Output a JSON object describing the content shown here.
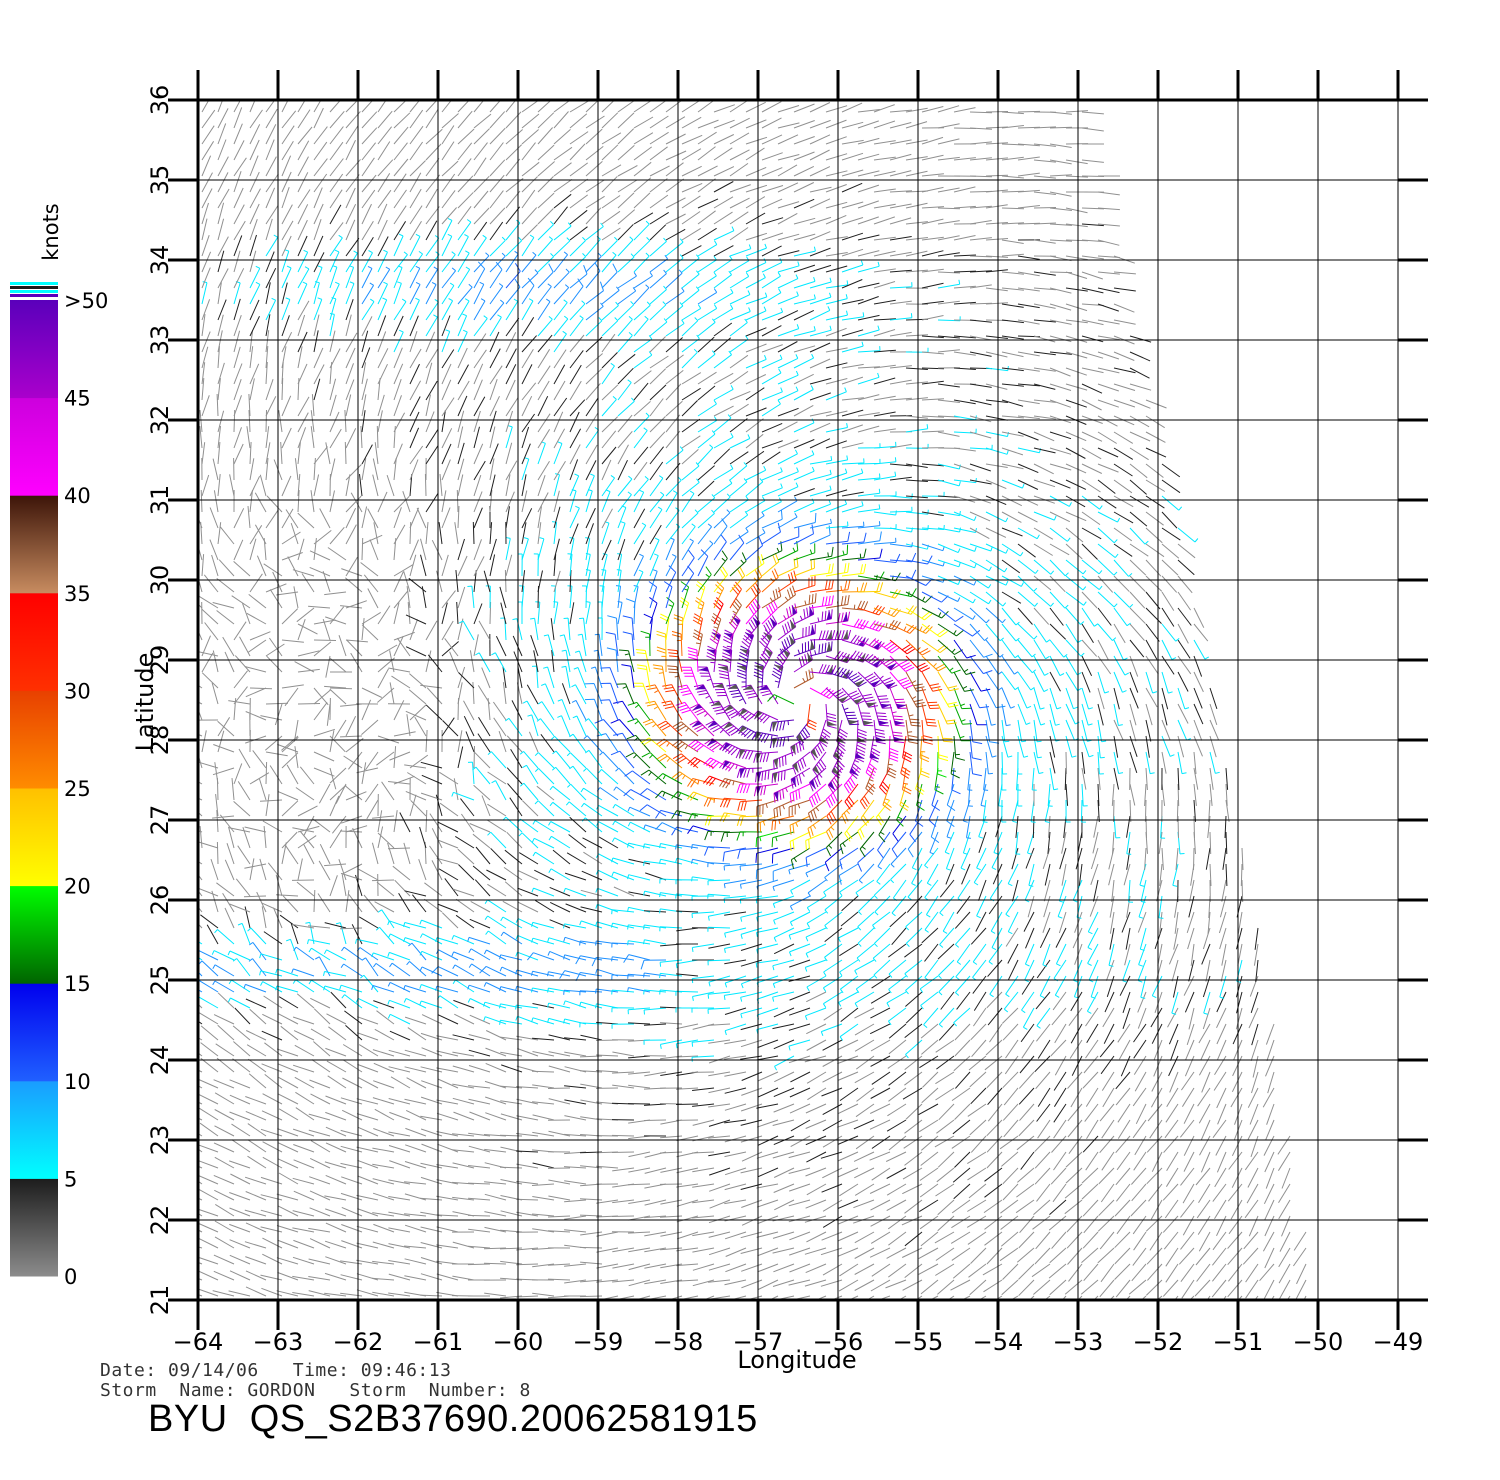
{
  "colorbar": {
    "unit_label": "knots",
    "tick_labels": [
      ">50",
      "45",
      "40",
      "35",
      "30",
      "25",
      "20",
      "15",
      "10",
      "5",
      "0"
    ],
    "bands": [
      {
        "range": "0-5",
        "colors": [
          "#8c8c8c",
          "#1c1c1c"
        ]
      },
      {
        "range": "5-10",
        "colors": [
          "#00ffff",
          "#1a9cff"
        ]
      },
      {
        "range": "10-15",
        "colors": [
          "#2060ff",
          "#0000ee"
        ]
      },
      {
        "range": "15-20",
        "colors": [
          "#006400",
          "#00ff00"
        ]
      },
      {
        "range": "20-25",
        "colors": [
          "#ffff00",
          "#ffc000"
        ]
      },
      {
        "range": "25-30",
        "colors": [
          "#ff8c00",
          "#e84000"
        ]
      },
      {
        "range": "30-35",
        "colors": [
          "#ff3000",
          "#ff0000"
        ]
      },
      {
        "range": "35-40",
        "colors": [
          "#c88c60",
          "#3c1408"
        ]
      },
      {
        "range": "40-45",
        "colors": [
          "#ff00ff",
          "#cc00dd"
        ]
      },
      {
        "range": "45-50",
        "colors": [
          "#aa00cc",
          "#5a00bb"
        ]
      }
    ]
  },
  "map": {
    "lon_range": [
      -64,
      -49
    ],
    "lat_range": [
      21,
      36
    ],
    "lon_ticks": [
      "−64",
      "−63",
      "−62",
      "−61",
      "−60",
      "−59",
      "−58",
      "−57",
      "−56",
      "−55",
      "−54",
      "−53",
      "−52",
      "−51",
      "−50",
      "−49"
    ],
    "lat_ticks": [
      "21",
      "22",
      "23",
      "24",
      "25",
      "26",
      "27",
      "28",
      "29",
      "30",
      "31",
      "32",
      "33",
      "34",
      "35",
      "36"
    ],
    "xlabel": "Longitude",
    "ylabel": "Latitude",
    "grid": true,
    "storm_center": {
      "lon": -56.5,
      "lat": 28.5
    },
    "swath_east_edge_lon_at_lat": [
      [
        -52.9,
        36
      ],
      [
        -52.3,
        33
      ],
      [
        -51.8,
        31
      ],
      [
        -51.2,
        28
      ],
      [
        -50.7,
        25.5
      ],
      [
        -50.0,
        21
      ]
    ]
  },
  "footer": {
    "date_line": "Date: 09/14/06   Time: 09:46:13",
    "storm_line": "Storm  Name: GORDON   Storm  Number: 8",
    "product_id": "BYU  QS_S2B37690.20062581915"
  }
}
